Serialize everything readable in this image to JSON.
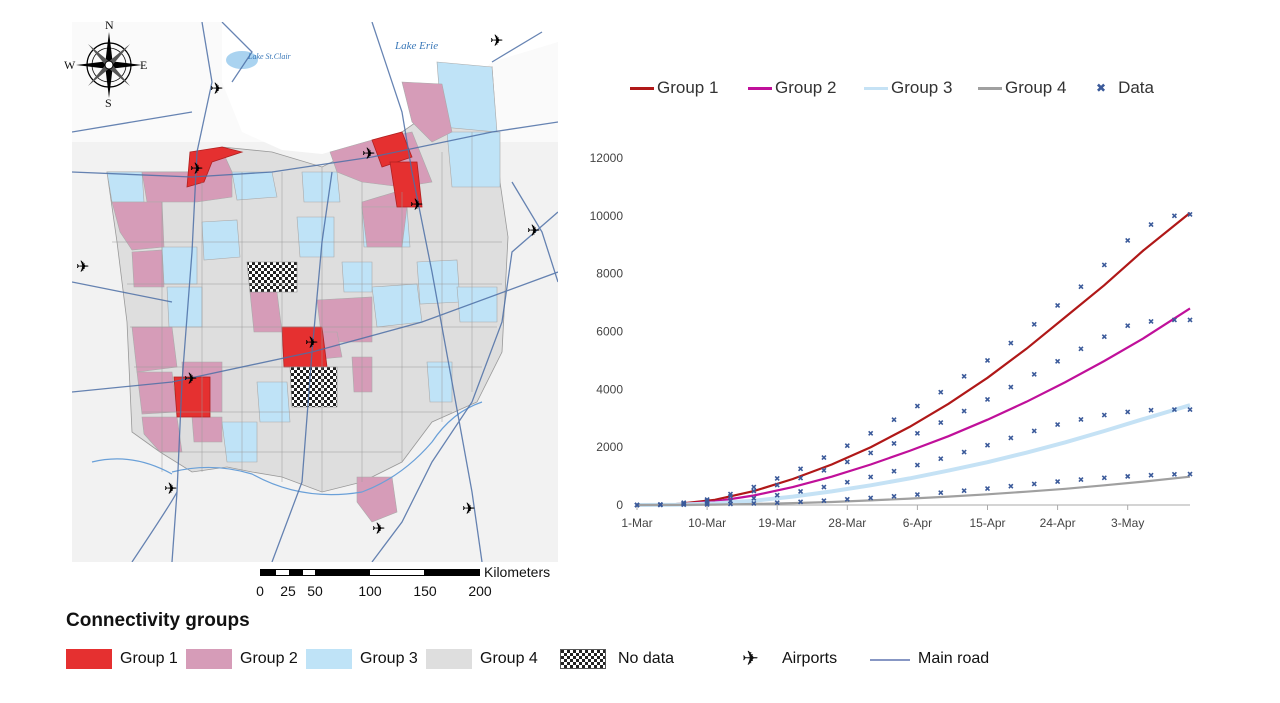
{
  "map": {
    "compass": {
      "n": "N",
      "s": "S",
      "e": "E",
      "w": "W"
    },
    "lakes": {
      "lake_erie": "Lake Erie",
      "lake_st_clair": "Lake St.Clair"
    },
    "scale": {
      "unit": "Kilometers",
      "ticks": [
        "0",
        "25",
        "50",
        "100",
        "150",
        "200"
      ]
    },
    "colors": {
      "group1": "#e53030",
      "group2": "#d69cb8",
      "group3": "#bfe3f7",
      "group4": "#dedede",
      "water": "#aad3f0",
      "road": "#4d6fa6"
    }
  },
  "legend": {
    "title": "Connectivity groups",
    "items": [
      {
        "label": "Group 1",
        "color": "#e53030"
      },
      {
        "label": "Group 2",
        "color": "#d69cb8"
      },
      {
        "label": "Group 3",
        "color": "#bfe3f7"
      },
      {
        "label": "Group 4",
        "color": "#dedede"
      },
      {
        "label": "No data",
        "pattern": "checker"
      },
      {
        "label": "Airports",
        "icon": "airplane-icon"
      },
      {
        "label": "Main road",
        "color": "#8797c4"
      }
    ]
  },
  "chart_data": {
    "type": "line",
    "categories": [
      "1-Mar",
      "10-Mar",
      "19-Mar",
      "28-Mar",
      "6-Apr",
      "15-Apr",
      "24-Apr",
      "3-May"
    ],
    "x_days": [
      0,
      9,
      18,
      27,
      36,
      45,
      54,
      63
    ],
    "x_max_day": 71,
    "ylim": [
      0,
      12000
    ],
    "yticks": [
      "0",
      "2000",
      "4000",
      "6000",
      "8000",
      "10000",
      "12000"
    ],
    "grid": false,
    "legend_position": "top",
    "series": [
      {
        "name": "Group 1",
        "color": "#b01818",
        "x": [
          0,
          5,
          10,
          15,
          20,
          25,
          30,
          35,
          40,
          45,
          50,
          55,
          60,
          65,
          71
        ],
        "y": [
          0,
          30,
          180,
          480,
          900,
          1400,
          2000,
          2700,
          3500,
          4400,
          5400,
          6500,
          7600,
          8800,
          10100
        ]
      },
      {
        "name": "Group 2",
        "color": "#c0109a",
        "x": [
          0,
          5,
          10,
          15,
          20,
          25,
          30,
          35,
          40,
          45,
          50,
          55,
          60,
          65,
          71
        ],
        "y": [
          0,
          20,
          120,
          330,
          620,
          980,
          1400,
          1870,
          2380,
          2950,
          3570,
          4250,
          4980,
          5760,
          6800
        ]
      },
      {
        "name": "Group 3",
        "color": "#c5e2f5",
        "x": [
          0,
          5,
          10,
          15,
          20,
          25,
          30,
          35,
          40,
          45,
          50,
          55,
          60,
          65,
          71
        ],
        "y": [
          0,
          10,
          55,
          150,
          290,
          470,
          680,
          920,
          1190,
          1480,
          1810,
          2170,
          2560,
          2970,
          3450
        ]
      },
      {
        "name": "Group 4",
        "color": "#a0a0a0",
        "x": [
          0,
          5,
          10,
          15,
          20,
          25,
          30,
          35,
          40,
          45,
          50,
          55,
          60,
          65,
          71
        ],
        "y": [
          0,
          5,
          15,
          35,
          65,
          105,
          160,
          220,
          290,
          370,
          460,
          560,
          680,
          810,
          980
        ]
      }
    ],
    "data_points": {
      "name": "Data",
      "color": "#3b5a9a",
      "series": [
        {
          "x": [
            0,
            3,
            6,
            9,
            12,
            15,
            18,
            21,
            24,
            27,
            30,
            33,
            36,
            39,
            42,
            45,
            48,
            51,
            54,
            57,
            60,
            63,
            66,
            69,
            71
          ],
          "y": [
            0,
            20,
            80,
            190,
            380,
            620,
            920,
            1250,
            1640,
            2050,
            2480,
            2950,
            3420,
            3900,
            4450,
            5000,
            5600,
            6250,
            6900,
            7550,
            8300,
            9150,
            9700,
            10000,
            10050
          ]
        },
        {
          "x": [
            0,
            3,
            6,
            9,
            12,
            15,
            18,
            21,
            24,
            27,
            30,
            33,
            36,
            39,
            42,
            45,
            48,
            51,
            54,
            57,
            60,
            63,
            66,
            69,
            71
          ],
          "y": [
            0,
            15,
            60,
            150,
            300,
            480,
            690,
            930,
            1200,
            1490,
            1800,
            2130,
            2480,
            2850,
            3250,
            3650,
            4080,
            4520,
            4970,
            5400,
            5820,
            6200,
            6350,
            6400,
            6400
          ]
        },
        {
          "x": [
            0,
            3,
            6,
            9,
            12,
            15,
            18,
            21,
            24,
            27,
            30,
            33,
            36,
            39,
            42,
            45,
            48,
            51,
            54,
            57,
            60,
            63,
            66,
            69,
            71
          ],
          "y": [
            0,
            8,
            30,
            75,
            140,
            230,
            340,
            470,
            620,
            790,
            970,
            1170,
            1380,
            1600,
            1830,
            2070,
            2320,
            2560,
            2780,
            2960,
            3110,
            3220,
            3280,
            3300,
            3300
          ]
        },
        {
          "x": [
            0,
            3,
            6,
            9,
            12,
            15,
            18,
            21,
            24,
            27,
            30,
            33,
            36,
            39,
            42,
            45,
            48,
            51,
            54,
            57,
            60,
            63,
            66,
            69,
            71
          ],
          "y": [
            0,
            3,
            10,
            20,
            35,
            55,
            80,
            110,
            150,
            195,
            245,
            300,
            360,
            425,
            495,
            570,
            650,
            730,
            810,
            880,
            940,
            990,
            1030,
            1060,
            1070
          ]
        }
      ]
    }
  }
}
